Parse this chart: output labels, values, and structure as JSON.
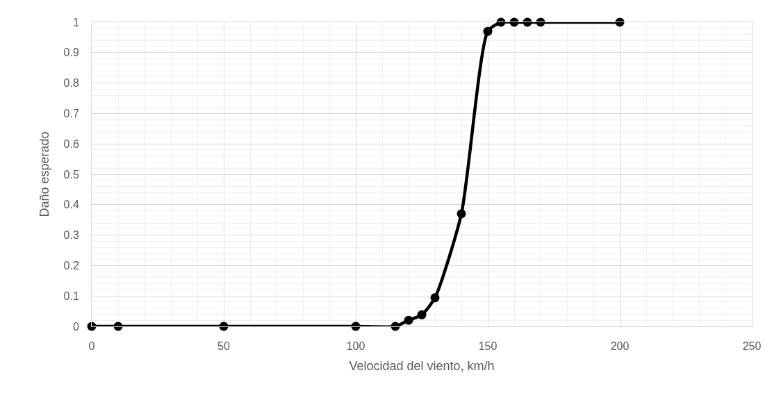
{
  "chart_data": {
    "type": "line",
    "xlabel": "Velocidad del viento, km/h",
    "ylabel": "Daño esperado",
    "x": [
      0,
      10,
      50,
      100,
      115,
      120,
      125,
      130,
      140,
      150,
      155,
      160,
      165,
      170,
      200
    ],
    "series": [
      {
        "color": "#000000",
        "values": [
          0,
          0,
          0,
          0,
          0,
          0.02,
          0.038,
          0.094,
          0.37,
          0.97,
          1,
          1,
          1,
          1,
          1
        ]
      }
    ],
    "xlim": [
      0,
      250
    ],
    "xticks": [
      0,
      50,
      100,
      150,
      200,
      250
    ],
    "ylim": [
      0,
      1
    ],
    "yticks": [
      0,
      {
        "value": 0.1,
        "label": "0.1"
      },
      {
        "value": 0.2,
        "label": "0.2"
      },
      {
        "value": 0.3,
        "label": "0.3"
      },
      {
        "value": 0.4,
        "label": "0.4"
      },
      {
        "value": 0.5,
        "label": "0.5"
      },
      {
        "value": 0.6,
        "label": "0.6"
      },
      {
        "value": 0.7,
        "label": "0.7"
      },
      {
        "value": 0.8,
        "label": "0.8"
      },
      {
        "value": 0.9,
        "label": "0.9"
      },
      1
    ],
    "grid": true,
    "legend": false,
    "marker": "circle",
    "line_style": "solid"
  }
}
